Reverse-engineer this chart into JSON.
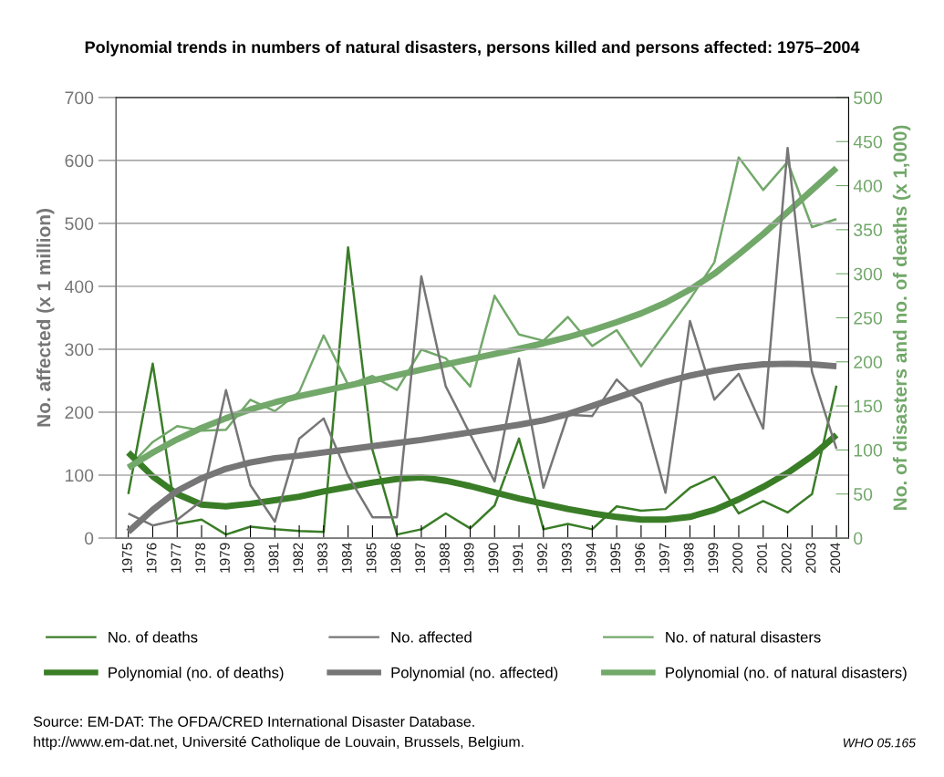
{
  "chart_data": {
    "type": "line",
    "title": "Polynomial trends in numbers of natural disasters, persons killed and persons affected: 1975–2004",
    "ylabel": "No. affected (x 1 million)",
    "y2label": "No. of disasters and no. of deaths (x 1,000)",
    "categories": [
      "1975",
      "1976",
      "1977",
      "1978",
      "1979",
      "1980",
      "1981",
      "1982",
      "1983",
      "1984",
      "1985",
      "1986",
      "1987",
      "1988",
      "1989",
      "1990",
      "1991",
      "1992",
      "1993",
      "1994",
      "1995",
      "1996",
      "1997",
      "1998",
      "1999",
      "2000",
      "2001",
      "2002",
      "2003",
      "2004"
    ],
    "series": [
      {
        "name": "No. of deaths",
        "color": "#3a7d27",
        "axis": "y2",
        "values": [
          50,
          198,
          16,
          21,
          4,
          13,
          10,
          8,
          7,
          330,
          100,
          4,
          10,
          28,
          11,
          37,
          113,
          10,
          16,
          10,
          36,
          31,
          33,
          57,
          70,
          28,
          42,
          29,
          50,
          173
        ]
      },
      {
        "name": "No. affected",
        "color": "#767676",
        "values": [
          39,
          20,
          29,
          59,
          235,
          84,
          26,
          158,
          190,
          99,
          33,
          33,
          416,
          241,
          165,
          90,
          285,
          80,
          196,
          194,
          252,
          214,
          72,
          345,
          220,
          261,
          174,
          620,
          264,
          142
        ]
      },
      {
        "name": "No. of natural disasters",
        "color": "#72a86a",
        "axis": "y2",
        "values": [
          80,
          109,
          127,
          122,
          123,
          157,
          144,
          166,
          230,
          174,
          184,
          168,
          214,
          204,
          172,
          275,
          231,
          224,
          251,
          218,
          236,
          195,
          233,
          271,
          313,
          432,
          395,
          427,
          353,
          362
        ]
      },
      {
        "name": "Polynomial (no. of deaths)",
        "color": "#3a7d27",
        "axis": "y2",
        "values": [
          97,
          70,
          50,
          38,
          36,
          39,
          43,
          47,
          53,
          58,
          63,
          67,
          69,
          65,
          59,
          52,
          45,
          39,
          33,
          28,
          24,
          21,
          21,
          24,
          32,
          44,
          58,
          74,
          93,
          117
        ]
      },
      {
        "name": "Polynomial (no. affected)",
        "color": "#767676",
        "values": [
          10,
          45,
          75,
          95,
          110,
          120,
          127,
          131,
          136,
          141,
          146,
          151,
          156,
          162,
          168,
          174,
          180,
          187,
          197,
          210,
          223,
          236,
          248,
          258,
          266,
          272,
          276,
          277,
          276,
          273
        ]
      },
      {
        "name": "Polynomial (no. of natural disasters)",
        "color": "#72a86a",
        "axis": "y2",
        "values": [
          80,
          97,
          112,
          125,
          136,
          146,
          154,
          161,
          167,
          173,
          179,
          185,
          191,
          197,
          203,
          209,
          215,
          221,
          228,
          236,
          245,
          255,
          267,
          282,
          300,
          322,
          345,
          370,
          395,
          420
        ]
      }
    ],
    "ylim": [
      0,
      700
    ],
    "yticks": [
      0,
      100,
      200,
      300,
      400,
      500,
      600,
      700
    ],
    "y2lim": [
      0,
      500
    ],
    "y2ticks": [
      0,
      50,
      100,
      150,
      200,
      250,
      300,
      350,
      400,
      450,
      500
    ],
    "grid": "y",
    "legend": "bottom",
    "marker": "none",
    "line_style": "solid",
    "annotations": [
      "Source: EM-DAT: The OFDA/CRED International Disaster Database.\nhttp://www.em-dat.net, Université Catholique de Louvain, Brussels, Belgium.",
      "WHO 05.165"
    ]
  }
}
